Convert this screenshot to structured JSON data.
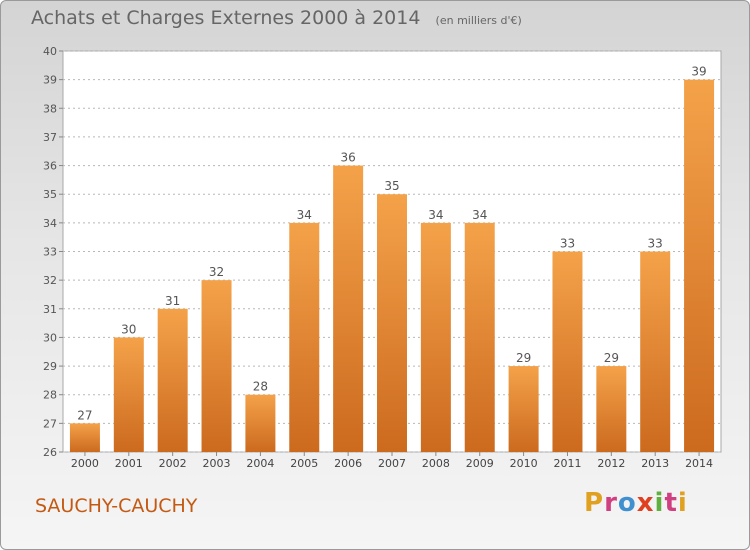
{
  "title": "Achats et Charges Externes 2000 à 2014",
  "subtitle": "(en milliers d'€)",
  "place": "SAUCHY-CAUCHY",
  "logo": {
    "text": "Proxiti",
    "colors": [
      "#e0a020",
      "#d04080",
      "#4090d0",
      "#e04020",
      "#60b040",
      "#d04080",
      "#e0a020"
    ]
  },
  "colors": {
    "bar_top": "#f4a24a",
    "bar_bottom": "#cc6a1e",
    "grid": "#b8b8b8"
  },
  "chart_data": {
    "type": "bar",
    "categories": [
      "2000",
      "2001",
      "2002",
      "2003",
      "2004",
      "2005",
      "2006",
      "2007",
      "2008",
      "2009",
      "2010",
      "2011",
      "2012",
      "2013",
      "2014"
    ],
    "values": [
      27,
      30,
      31,
      32,
      28,
      34,
      36,
      35,
      34,
      34,
      29,
      33,
      29,
      33,
      39
    ],
    "ylim": [
      26,
      40
    ],
    "yticks": [
      26,
      27,
      28,
      29,
      30,
      31,
      32,
      33,
      34,
      35,
      36,
      37,
      38,
      39,
      40
    ],
    "grid": true,
    "data_labels": true
  }
}
